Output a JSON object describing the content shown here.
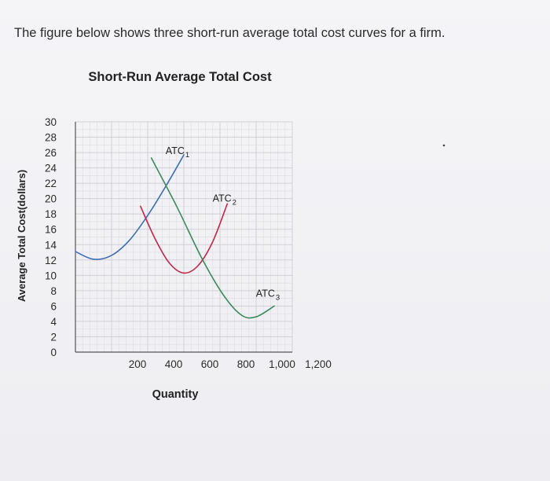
{
  "intro_text": "The figure below shows three short-run average total cost curves for a firm.",
  "chart_data": {
    "type": "line",
    "title": "Short-Run Average Total Cost",
    "xlabel": "Quantity",
    "ylabel": "Average Total Cost(dollars)",
    "xlim": [
      0,
      1200
    ],
    "ylim": [
      0,
      30
    ],
    "x_ticks": [
      {
        "value": 200,
        "label": "200"
      },
      {
        "value": 400,
        "label": "400"
      },
      {
        "value": 600,
        "label": "600"
      },
      {
        "value": 800,
        "label": "800"
      },
      {
        "value": 1000,
        "label": "1,000"
      },
      {
        "value": 1200,
        "label": "1,200"
      }
    ],
    "y_ticks": [
      {
        "value": 0,
        "label": "0"
      },
      {
        "value": 2,
        "label": "2"
      },
      {
        "value": 4,
        "label": "4"
      },
      {
        "value": 6,
        "label": "6"
      },
      {
        "value": 8,
        "label": "8"
      },
      {
        "value": 10,
        "label": "10"
      },
      {
        "value": 12,
        "label": "12"
      },
      {
        "value": 14,
        "label": "14"
      },
      {
        "value": 16,
        "label": "16"
      },
      {
        "value": 18,
        "label": "18"
      },
      {
        "value": 20,
        "label": "20"
      },
      {
        "value": 22,
        "label": "22"
      },
      {
        "value": 24,
        "label": "24"
      },
      {
        "value": 26,
        "label": "26"
      },
      {
        "value": 28,
        "label": "28"
      },
      {
        "value": 30,
        "label": "30"
      }
    ],
    "grid": true,
    "series": [
      {
        "name": "ATC1",
        "label_main": "ATC",
        "label_sub": "1",
        "color": "#3e6fb3",
        "x": [
          0,
          100,
          200,
          300,
          400,
          500,
          600
        ],
        "y": [
          13.1,
          12.1,
          12.6,
          14.6,
          17.8,
          21.6,
          25.7
        ]
      },
      {
        "name": "ATC2",
        "label_main": "ATC",
        "label_sub": "2",
        "color": "#c0284a",
        "x": [
          360,
          440,
          520,
          600,
          680,
          760,
          840
        ],
        "y": [
          19.0,
          14.8,
          11.6,
          10.3,
          11.3,
          14.4,
          19.3
        ]
      },
      {
        "name": "ATC3",
        "label_main": "ATC",
        "label_sub": "3",
        "color": "#3b8a5c",
        "x": [
          420,
          560,
          700,
          820,
          920,
          1000,
          1100
        ],
        "y": [
          25.3,
          19.0,
          12.2,
          7.4,
          4.8,
          4.6,
          6.0
        ]
      }
    ],
    "annotations": [
      {
        "text": "ATC",
        "sub": "1",
        "x": 560,
        "y": 25.8
      },
      {
        "text": "ATC",
        "sub": "2",
        "x": 820,
        "y": 19.6
      },
      {
        "text": "ATC",
        "sub": "3",
        "x": 1060,
        "y": 7.2
      }
    ]
  }
}
